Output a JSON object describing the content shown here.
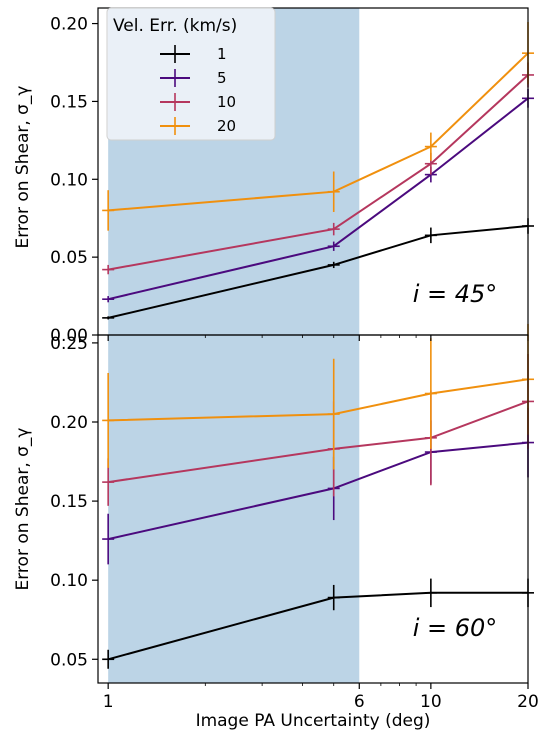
{
  "chart_data": {
    "type": "line",
    "xlabel": "Image PA Uncertainty (deg)",
    "x_scale": "log",
    "x": [
      1,
      5,
      10,
      20
    ],
    "xlim": [
      0.93,
      20
    ],
    "x_ticks": [
      1,
      6,
      10,
      20
    ],
    "shaded_x_range": [
      1,
      6
    ],
    "shade_color": "#bcd4e6",
    "legend": {
      "title": "Vel. Err. (km/s)",
      "placement": "top-left"
    },
    "panels": [
      {
        "annotation": "i = 45°",
        "ylabel": "Error on Shear, σ_γ",
        "ylim": [
          0.0,
          0.21
        ],
        "y_ticks": [
          "0.00",
          "0.05",
          "0.10",
          "0.15",
          "0.20"
        ],
        "series": [
          {
            "name": "1",
            "color": "#000000",
            "values": [
              0.011,
              0.045,
              0.064,
              0.07
            ],
            "errors": [
              0.001,
              0.002,
              0.005,
              0.005
            ]
          },
          {
            "name": "5",
            "color": "#4b0a7e",
            "values": [
              0.023,
              0.057,
              0.103,
              0.152
            ],
            "errors": [
              0.002,
              0.003,
              0.005,
              0.006
            ]
          },
          {
            "name": "10",
            "color": "#b5375e",
            "values": [
              0.042,
              0.068,
              0.11,
              0.167
            ],
            "errors": [
              0.003,
              0.004,
              0.007,
              0.008
            ]
          },
          {
            "name": "20",
            "color": "#f0900e",
            "values": [
              0.08,
              0.092,
              0.121,
              0.181
            ],
            "errors": [
              0.013,
              0.013,
              0.009,
              0.02
            ]
          }
        ]
      },
      {
        "annotation": "i = 60°",
        "ylabel": "Error on Shear, σ_γ",
        "ylim": [
          0.035,
          0.255
        ],
        "y_ticks": [
          "0.05",
          "0.10",
          "0.15",
          "0.20",
          "0.25"
        ],
        "series": [
          {
            "name": "1",
            "color": "#000000",
            "values": [
              0.05,
              0.089,
              0.092,
              0.092
            ],
            "errors": [
              0.006,
              0.008,
              0.009,
              0.009
            ]
          },
          {
            "name": "5",
            "color": "#4b0a7e",
            "values": [
              0.126,
              0.158,
              0.181,
              0.187
            ],
            "errors": [
              0.016,
              0.02,
              0.02,
              0.022
            ]
          },
          {
            "name": "10",
            "color": "#b5375e",
            "values": [
              0.162,
              0.183,
              0.19,
              0.213
            ],
            "errors": [
              0.015,
              0.03,
              0.03,
              0.03
            ]
          },
          {
            "name": "20",
            "color": "#f0900e",
            "values": [
              0.201,
              0.205,
              0.218,
              0.227
            ],
            "errors": [
              0.03,
              0.035,
              0.035,
              0.035
            ]
          }
        ]
      }
    ]
  }
}
